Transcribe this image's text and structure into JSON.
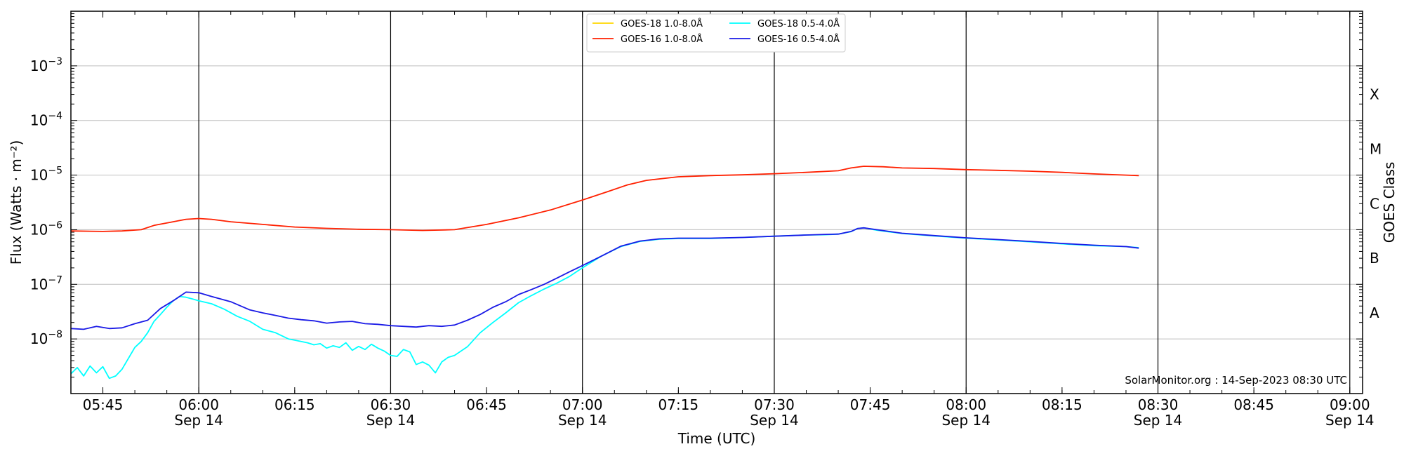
{
  "chart_data": {
    "type": "line",
    "title": "",
    "xlabel": "Time (UTC)",
    "ylabel": "Flux (Watts · m⁻²)",
    "ylabel_right": "GOES Class",
    "yscale": "log",
    "ylim": [
      1e-09,
      0.01
    ],
    "xlim": [
      "05:40",
      "09:02"
    ],
    "grid": "horizontal",
    "legend_position": "top-center",
    "credit": "SolarMonitor.org : 14-Sep-2023 08:30 UTC",
    "y_ticks": [
      {
        "value": 1e-08,
        "base": "10",
        "exp": "−8"
      },
      {
        "value": 1e-07,
        "base": "10",
        "exp": "−7"
      },
      {
        "value": 1e-06,
        "base": "10",
        "exp": "−6"
      },
      {
        "value": 1e-05,
        "base": "10",
        "exp": "−5"
      },
      {
        "value": 0.0001,
        "base": "10",
        "exp": "−4"
      },
      {
        "value": 0.001,
        "base": "10",
        "exp": "−3"
      }
    ],
    "x_ticks": [
      {
        "time": "05:45",
        "label": "05:45",
        "date": ""
      },
      {
        "time": "06:00",
        "label": "06:00",
        "date": "Sep 14"
      },
      {
        "time": "06:15",
        "label": "06:15",
        "date": ""
      },
      {
        "time": "06:30",
        "label": "06:30",
        "date": "Sep 14"
      },
      {
        "time": "06:45",
        "label": "06:45",
        "date": ""
      },
      {
        "time": "07:00",
        "label": "07:00",
        "date": "Sep 14"
      },
      {
        "time": "07:15",
        "label": "07:15",
        "date": ""
      },
      {
        "time": "07:30",
        "label": "07:30",
        "date": "Sep 14"
      },
      {
        "time": "07:45",
        "label": "07:45",
        "date": ""
      },
      {
        "time": "08:00",
        "label": "08:00",
        "date": "Sep 14"
      },
      {
        "time": "08:15",
        "label": "08:15",
        "date": ""
      },
      {
        "time": "08:30",
        "label": "08:30",
        "date": "Sep 14"
      },
      {
        "time": "08:45",
        "label": "08:45",
        "date": ""
      },
      {
        "time": "09:00",
        "label": "09:00",
        "date": "Sep 14"
      }
    ],
    "vertical_lines": [
      "06:00",
      "06:30",
      "07:00",
      "07:30",
      "08:00",
      "08:30",
      "09:00"
    ],
    "goes_classes": [
      {
        "label": "A",
        "value": 3e-08
      },
      {
        "label": "B",
        "value": 3e-07
      },
      {
        "label": "C",
        "value": 3e-06
      },
      {
        "label": "M",
        "value": 3e-05
      },
      {
        "label": "X",
        "value": 0.0003
      }
    ],
    "series": [
      {
        "name": "GOES-18 1.0-8.0Å",
        "color": "#ffd700",
        "x": [],
        "y": []
      },
      {
        "name": "GOES-16 1.0-8.0Å",
        "color": "#ff2000",
        "x": [
          "05:40",
          "05:45",
          "05:48",
          "05:51",
          "05:53",
          "05:56",
          "05:58",
          "06:00",
          "06:02",
          "06:05",
          "06:10",
          "06:15",
          "06:20",
          "06:25",
          "06:30",
          "06:35",
          "06:40",
          "06:45",
          "06:50",
          "06:55",
          "07:00",
          "07:04",
          "07:07",
          "07:10",
          "07:15",
          "07:20",
          "07:25",
          "07:30",
          "07:35",
          "07:40",
          "07:42",
          "07:44",
          "07:47",
          "07:50",
          "07:55",
          "08:00",
          "08:05",
          "08:10",
          "08:15",
          "08:20",
          "08:25",
          "08:27"
        ],
        "y": [
          9.5e-07,
          9.3e-07,
          9.5e-07,
          1e-06,
          1.2e-06,
          1.4e-06,
          1.55e-06,
          1.6e-06,
          1.55e-06,
          1.4e-06,
          1.25e-06,
          1.12e-06,
          1.06e-06,
          1.02e-06,
          1e-06,
          9.7e-07,
          1e-06,
          1.25e-06,
          1.65e-06,
          2.3e-06,
          3.5e-06,
          5e-06,
          6.6e-06,
          8e-06,
          9.3e-06,
          9.8e-06,
          1.01e-05,
          1.06e-05,
          1.12e-05,
          1.2e-05,
          1.35e-05,
          1.45e-05,
          1.42e-05,
          1.35e-05,
          1.32e-05,
          1.26e-05,
          1.22e-05,
          1.18e-05,
          1.12e-05,
          1.05e-05,
          1e-05,
          9.8e-06
        ]
      },
      {
        "name": "GOES-18 0.5-4.0Å",
        "color": "#00ffff",
        "x": [
          "05:40",
          "05:41",
          "05:42",
          "05:43",
          "05:44",
          "05:45",
          "05:46",
          "05:47",
          "05:48",
          "05:50",
          "05:51",
          "05:52",
          "05:53",
          "05:54",
          "05:55",
          "05:56",
          "05:57",
          "05:58",
          "05:59",
          "06:00",
          "06:02",
          "06:04",
          "06:06",
          "06:08",
          "06:10",
          "06:12",
          "06:14",
          "06:15",
          "06:17",
          "06:18",
          "06:19",
          "06:20",
          "06:21",
          "06:22",
          "06:23",
          "06:24",
          "06:25",
          "06:26",
          "06:27",
          "06:28",
          "06:29",
          "06:30",
          "06:31",
          "06:32",
          "06:33",
          "06:34",
          "06:35",
          "06:36",
          "06:37",
          "06:38",
          "06:39",
          "06:40",
          "06:42",
          "06:44",
          "06:46",
          "06:48",
          "06:50",
          "06:52",
          "06:54",
          "06:56",
          "06:58",
          "07:00",
          "07:03",
          "07:06",
          "07:09",
          "07:12",
          "07:15",
          "07:20",
          "07:25",
          "07:30",
          "07:35",
          "07:38",
          "07:40",
          "07:42",
          "07:43",
          "07:44",
          "07:46",
          "07:50",
          "07:55",
          "08:00",
          "08:05",
          "08:10",
          "08:15",
          "08:20",
          "08:25",
          "08:27"
        ],
        "y": [
          2.3e-09,
          3e-09,
          2.1e-09,
          3.2e-09,
          2.4e-09,
          3.1e-09,
          1.9e-09,
          2.1e-09,
          2.8e-09,
          7e-09,
          9e-09,
          1.3e-08,
          2.1e-08,
          2.8e-08,
          3.8e-08,
          5e-08,
          6e-08,
          5.8e-08,
          5.4e-08,
          5e-08,
          4.4e-08,
          3.5e-08,
          2.6e-08,
          2.1e-08,
          1.5e-08,
          1.3e-08,
          1e-08,
          9.5e-09,
          8.5e-09,
          7.8e-09,
          8.2e-09,
          6.8e-09,
          7.5e-09,
          7e-09,
          8.5e-09,
          6.2e-09,
          7.3e-09,
          6.4e-09,
          8e-09,
          6.8e-09,
          6e-09,
          5e-09,
          4.8e-09,
          6.4e-09,
          5.8e-09,
          3.4e-09,
          3.8e-09,
          3.3e-09,
          2.4e-09,
          3.8e-09,
          4.6e-09,
          5e-09,
          7.2e-09,
          1.3e-08,
          2e-08,
          3e-08,
          4.6e-08,
          6.2e-08,
          8.2e-08,
          1.05e-07,
          1.4e-07,
          2e-07,
          3.3e-07,
          4.9e-07,
          6.1e-07,
          6.7e-07,
          6.9e-07,
          6.9e-07,
          7.2e-07,
          7.6e-07,
          8e-07,
          8.1e-07,
          8.3e-07,
          9.2e-07,
          1.05e-06,
          1.08e-06,
          9.8e-07,
          8.5e-07,
          7.7e-07,
          7e-07,
          6.5e-07,
          6e-07,
          5.5e-07,
          5.1e-07,
          4.9e-07,
          4.7e-07
        ]
      },
      {
        "name": "GOES-16 0.5-4.0Å",
        "color": "#1a1ae6",
        "x": [
          "05:40",
          "05:42",
          "05:44",
          "05:46",
          "05:48",
          "05:50",
          "05:52",
          "05:54",
          "05:56",
          "05:58",
          "06:00",
          "06:02",
          "06:05",
          "06:08",
          "06:10",
          "06:12",
          "06:14",
          "06:16",
          "06:18",
          "06:20",
          "06:22",
          "06:24",
          "06:26",
          "06:28",
          "06:30",
          "06:32",
          "06:34",
          "06:36",
          "06:38",
          "06:40",
          "06:42",
          "06:44",
          "06:46",
          "06:48",
          "06:50",
          "06:52",
          "06:54",
          "06:56",
          "06:58",
          "07:00",
          "07:03",
          "07:06",
          "07:09",
          "07:12",
          "07:15",
          "07:20",
          "07:25",
          "07:30",
          "07:35",
          "07:38",
          "07:40",
          "07:42",
          "07:43",
          "07:44",
          "07:46",
          "07:50",
          "07:55",
          "08:00",
          "08:05",
          "08:10",
          "08:15",
          "08:20",
          "08:25",
          "08:27"
        ],
        "y": [
          1.55e-08,
          1.5e-08,
          1.7e-08,
          1.55e-08,
          1.6e-08,
          1.9e-08,
          2.2e-08,
          3.6e-08,
          5e-08,
          7.2e-08,
          7e-08,
          6e-08,
          4.8e-08,
          3.4e-08,
          3e-08,
          2.7e-08,
          2.4e-08,
          2.25e-08,
          2.15e-08,
          1.95e-08,
          2.05e-08,
          2.1e-08,
          1.9e-08,
          1.85e-08,
          1.75e-08,
          1.7e-08,
          1.65e-08,
          1.75e-08,
          1.7e-08,
          1.8e-08,
          2.2e-08,
          2.8e-08,
          3.8e-08,
          4.8e-08,
          6.5e-08,
          8e-08,
          1e-07,
          1.3e-07,
          1.7e-07,
          2.2e-07,
          3.3e-07,
          5e-07,
          6.2e-07,
          6.8e-07,
          7e-07,
          7e-07,
          7.2e-07,
          7.6e-07,
          8e-07,
          8.2e-07,
          8.3e-07,
          9.3e-07,
          1.05e-06,
          1.08e-06,
          1e-06,
          8.6e-07,
          7.8e-07,
          7.1e-07,
          6.6e-07,
          6.1e-07,
          5.6e-07,
          5.2e-07,
          4.9e-07,
          4.6e-07
        ]
      }
    ]
  }
}
